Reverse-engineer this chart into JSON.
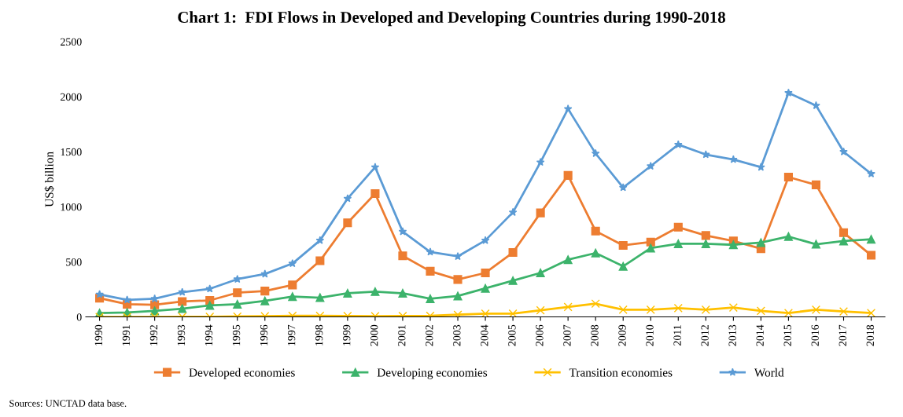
{
  "chart_data": {
    "type": "line",
    "title": "Chart 1:  FDI Flows in Developed and Developing Countries during 1990-2018",
    "ylabel": "US$ billion",
    "categories": [
      "1990",
      "1991",
      "1992",
      "1993",
      "1994",
      "1995",
      "1996",
      "1997",
      "1998",
      "1999",
      "2000",
      "2001",
      "2002",
      "2003",
      "2004",
      "2005",
      "2006",
      "2007",
      "2008",
      "2009",
      "2010",
      "2011",
      "2012",
      "2013",
      "2014",
      "2015",
      "2016",
      "2017",
      "2018"
    ],
    "series": [
      {
        "name": "Developed economies",
        "color": "#ed7d31",
        "marker": "square",
        "values": [
          170,
          115,
          110,
          140,
          150,
          220,
          235,
          290,
          510,
          855,
          1120,
          555,
          415,
          340,
          400,
          585,
          945,
          1285,
          780,
          650,
          680,
          815,
          740,
          690,
          620,
          1270,
          1200,
          765,
          560
        ]
      },
      {
        "name": "Developing economies",
        "color": "#3cb36b",
        "marker": "triangle",
        "values": [
          35,
          40,
          55,
          75,
          105,
          115,
          145,
          185,
          175,
          215,
          230,
          215,
          165,
          190,
          260,
          330,
          400,
          520,
          580,
          460,
          625,
          665,
          665,
          655,
          675,
          730,
          660,
          690,
          705
        ]
      },
      {
        "name": "Transition economies",
        "color": "#ffc000",
        "marker": "cross",
        "values": [
          0,
          0,
          0,
          1,
          1,
          4,
          6,
          10,
          10,
          8,
          7,
          9,
          10,
          20,
          30,
          30,
          60,
          90,
          120,
          65,
          65,
          80,
          65,
          85,
          55,
          35,
          65,
          50,
          35
        ]
      },
      {
        "name": "World",
        "color": "#5b9bd5",
        "marker": "star",
        "values": [
          205,
          155,
          165,
          225,
          255,
          343,
          390,
          485,
          695,
          1075,
          1360,
          775,
          590,
          550,
          695,
          950,
          1405,
          1890,
          1485,
          1175,
          1370,
          1565,
          1475,
          1430,
          1360,
          2035,
          1920,
          1500,
          1300
        ]
      }
    ],
    "ylim": [
      0,
      2500
    ],
    "yticks": [
      0,
      500,
      1000,
      1500,
      2000,
      2500
    ],
    "grid": false,
    "legend": "bottom",
    "annotations": [
      "Sources: UNCTAD data base."
    ]
  }
}
